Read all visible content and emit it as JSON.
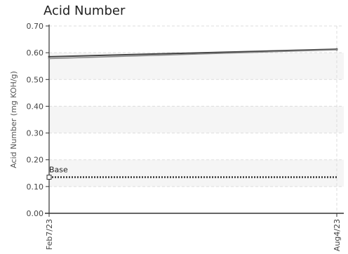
{
  "chart_data": {
    "type": "line",
    "title": "Acid Number",
    "ylabel": "Acid Number (mg KOH/g)",
    "xlabel": "",
    "x_tick_labels": [
      "Feb7/23",
      "Aug4/23"
    ],
    "ylim": [
      0,
      0.7
    ],
    "y_ticks": [
      0.0,
      0.1,
      0.2,
      0.3,
      0.4,
      0.5,
      0.6,
      0.7
    ],
    "y_tick_labels": [
      "0.00",
      "0.10",
      "0.20",
      "0.30",
      "0.40",
      "0.50",
      "0.60",
      "0.70"
    ],
    "bands": [
      [
        0.1,
        0.2
      ],
      [
        0.3,
        0.4
      ],
      [
        0.5,
        0.6
      ]
    ],
    "grid": true,
    "series": [
      {
        "values": [
          0.585,
          0.613
        ],
        "color": "#444444"
      },
      {
        "values": [
          0.578,
          0.611
        ],
        "color": "#888888"
      }
    ],
    "reference_lines": [
      {
        "name": "Base",
        "value": 0.135,
        "style": "dotted",
        "color": "#333333"
      }
    ]
  }
}
